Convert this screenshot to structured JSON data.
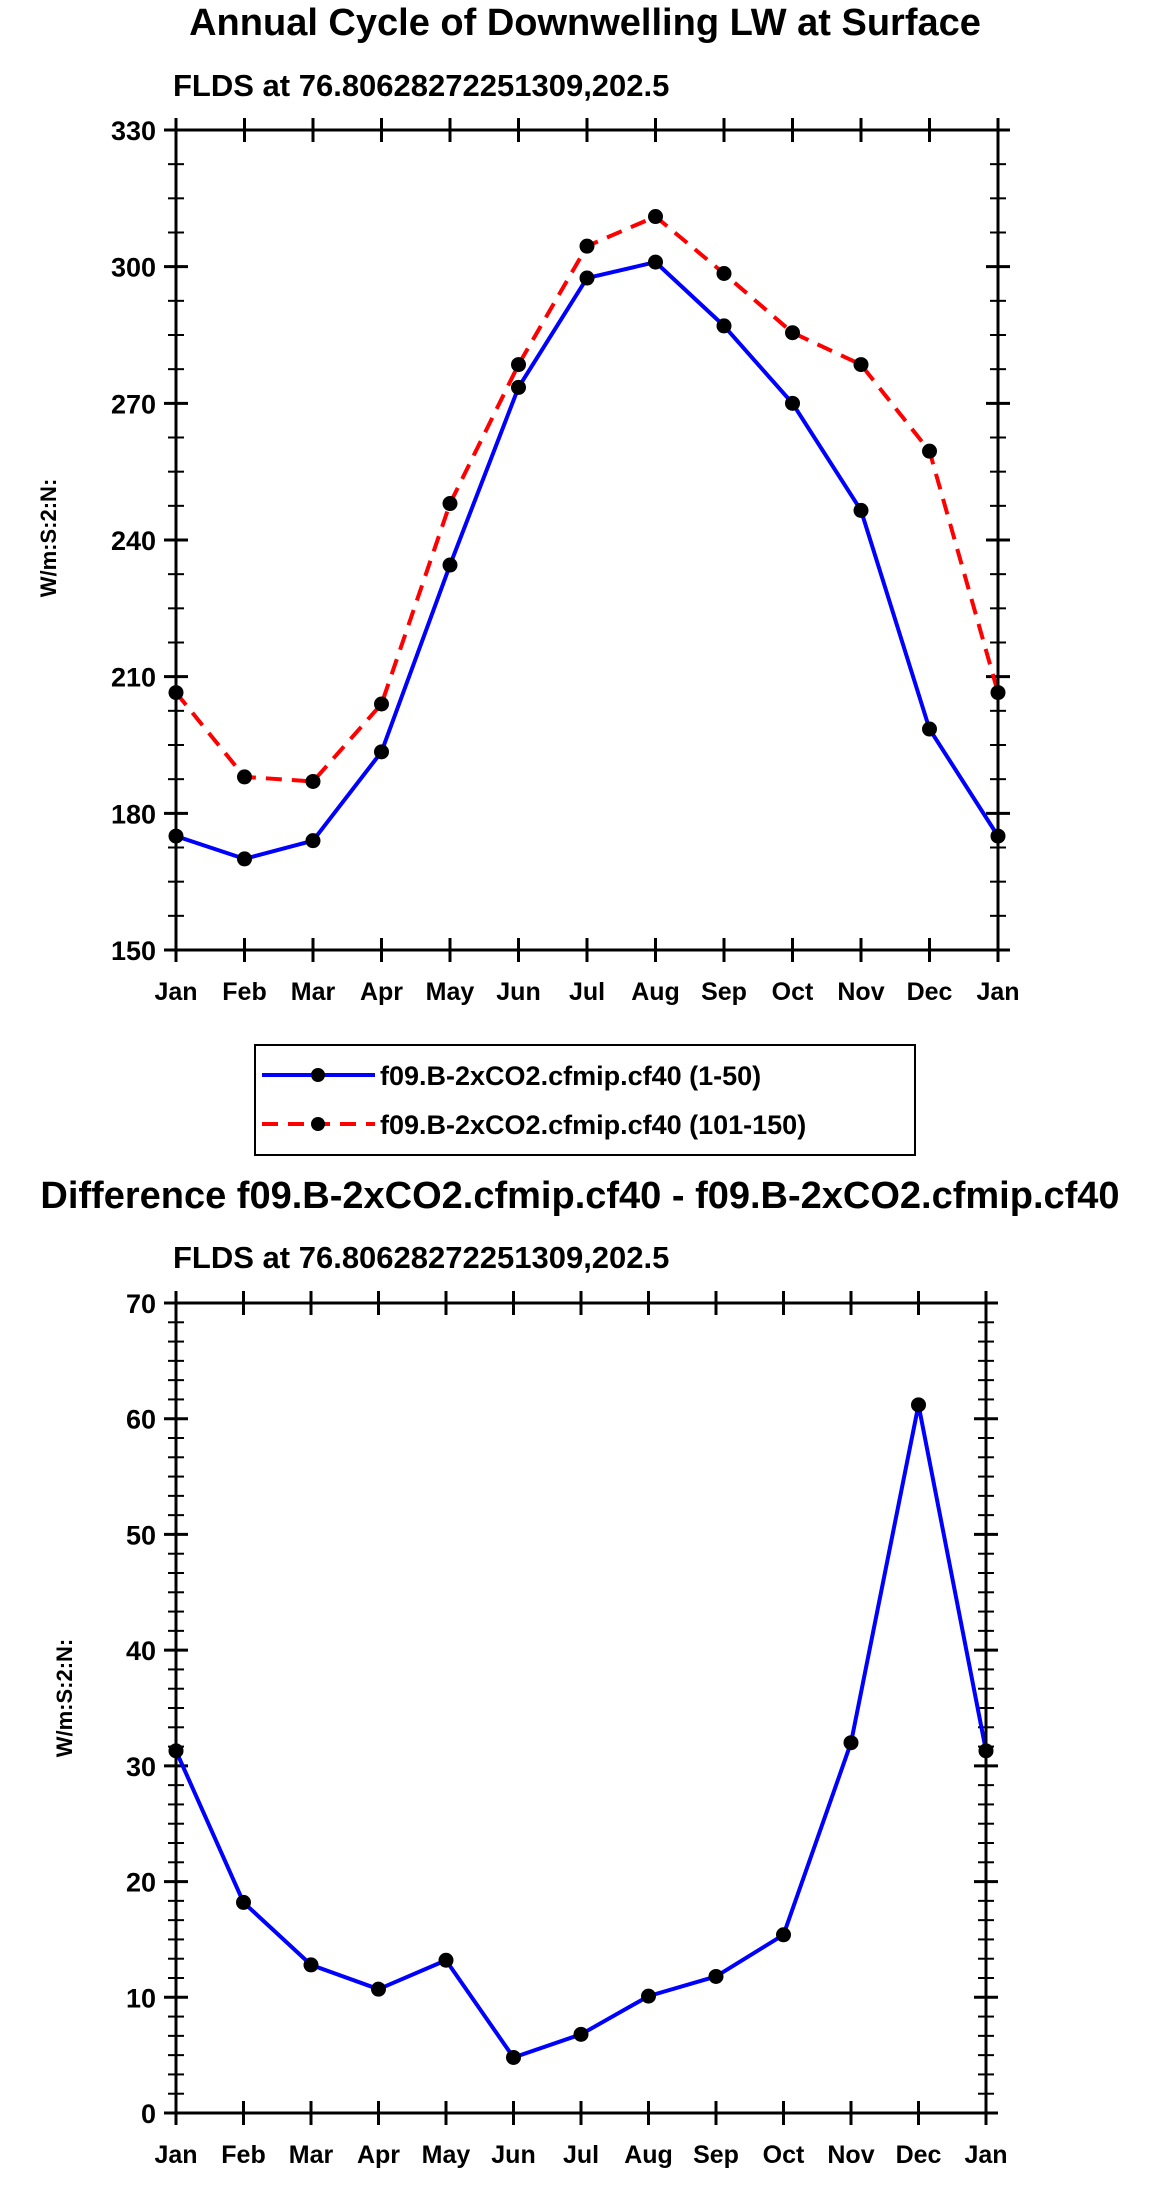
{
  "chart_data": [
    {
      "type": "line",
      "title": "Annual Cycle of Downwelling LW at Surface",
      "subtitle": "FLDS at 76.80628272251309,202.5",
      "ylabel": "W/m:S:2:N:",
      "xlabel": "",
      "categories": [
        "Jan",
        "Feb",
        "Mar",
        "Apr",
        "May",
        "Jun",
        "Jul",
        "Aug",
        "Sep",
        "Oct",
        "Nov",
        "Dec",
        "Jan"
      ],
      "ylim": [
        150,
        330
      ],
      "yticks": [
        150,
        180,
        210,
        240,
        270,
        300,
        330
      ],
      "series": [
        {
          "name": "f09.B-2xCO2.cfmip.cf40 (1-50)",
          "color": "#0000ff",
          "dash": "solid",
          "values": [
            175,
            170,
            174,
            193.5,
            234.5,
            273.5,
            297.5,
            301,
            287,
            270,
            246.5,
            198.5,
            175
          ]
        },
        {
          "name": "f09.B-2xCO2.cfmip.cf40 (101-150)",
          "color": "#ff0000",
          "dash": "dashed",
          "values": [
            206.5,
            188,
            187,
            204,
            248,
            278.5,
            304.5,
            311,
            298.5,
            285.5,
            278.5,
            259.5,
            206.5
          ]
        }
      ],
      "legend": "bottom"
    },
    {
      "type": "line",
      "title": "Difference f09.B-2xCO2.cfmip.cf40 - f09.B-2xCO2.cfmip.cf40",
      "subtitle": "FLDS at 76.80628272251309,202.5",
      "ylabel": "W/m:S:2:N:",
      "xlabel": "",
      "categories": [
        "Jan",
        "Feb",
        "Mar",
        "Apr",
        "May",
        "Jun",
        "Jul",
        "Aug",
        "Sep",
        "Oct",
        "Nov",
        "Dec",
        "Jan"
      ],
      "ylim": [
        0,
        70
      ],
      "yticks": [
        0,
        10,
        20,
        30,
        40,
        50,
        60,
        70
      ],
      "series": [
        {
          "name": "Difference",
          "color": "#0000ff",
          "dash": "solid",
          "values": [
            31.3,
            18.2,
            12.8,
            10.7,
            13.2,
            4.8,
            6.8,
            10.1,
            11.8,
            15.4,
            32,
            61.2,
            31.3
          ]
        }
      ]
    }
  ]
}
